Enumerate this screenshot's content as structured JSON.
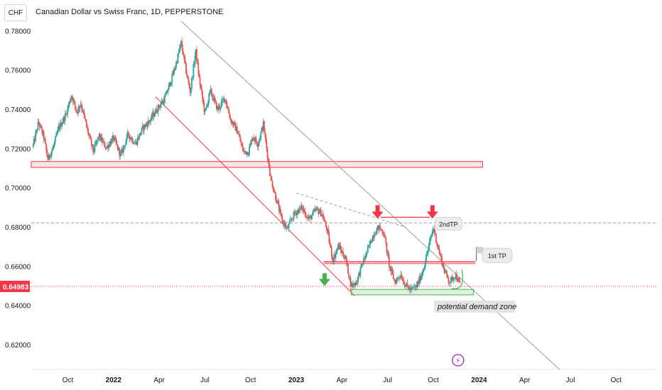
{
  "header": {
    "currency": "CHF",
    "title": "Canadian Dollar vs Swiss Franc, 1D, PEPPERSTONE"
  },
  "colors": {
    "up": "#26a69a",
    "down": "#ef5350",
    "resistance": "#f23645",
    "support": "#4caf50",
    "trendline": "#9e9e9e",
    "price_tag": "#f23645"
  },
  "chart_data": {
    "type": "candlestick",
    "title": "Canadian Dollar vs Swiss Franc, 1D, PEPPERSTONE",
    "ylim": [
      0.6075,
      0.785
    ],
    "y_ticks": [
      0.78,
      0.76,
      0.74,
      0.72,
      0.7,
      0.68,
      0.66,
      0.64,
      0.62
    ],
    "y_tick_labels": [
      "0.78000",
      "0.76000",
      "0.74000",
      "0.72000",
      "0.70000",
      "0.68000",
      "0.66000",
      "0.64000",
      "0.62000"
    ],
    "x_ticks": [
      "Oct",
      "2022",
      "Apr",
      "Jul",
      "Oct",
      "2023",
      "Apr",
      "Jul",
      "Oct",
      "2024",
      "Apr",
      "Jul",
      "Oct"
    ],
    "x_tick_positions": [
      2021.75,
      2022.0,
      2022.25,
      2022.5,
      2022.75,
      2023.0,
      2023.25,
      2023.5,
      2023.75,
      2024.0,
      2024.25,
      2024.5,
      2024.75
    ],
    "xlim": [
      2021.55,
      2024.97
    ],
    "current_price": 0.64983,
    "current_price_label": "0.64983",
    "price_path": [
      [
        2021.56,
        0.7215
      ],
      [
        2021.59,
        0.7335
      ],
      [
        2021.62,
        0.7255
      ],
      [
        2021.64,
        0.7145
      ],
      [
        2021.67,
        0.7205
      ],
      [
        2021.7,
        0.7305
      ],
      [
        2021.74,
        0.7375
      ],
      [
        2021.77,
        0.7475
      ],
      [
        2021.8,
        0.7385
      ],
      [
        2021.82,
        0.7435
      ],
      [
        2021.86,
        0.7285
      ],
      [
        2021.89,
        0.7185
      ],
      [
        2021.92,
        0.7265
      ],
      [
        2021.96,
        0.7205
      ],
      [
        2022.0,
        0.7255
      ],
      [
        2022.04,
        0.7165
      ],
      [
        2022.08,
        0.7275
      ],
      [
        2022.12,
        0.7225
      ],
      [
        2022.16,
        0.7305
      ],
      [
        2022.2,
        0.7345
      ],
      [
        2022.24,
        0.7405
      ],
      [
        2022.28,
        0.7455
      ],
      [
        2022.31,
        0.7535
      ],
      [
        2022.34,
        0.7625
      ],
      [
        2022.37,
        0.774
      ],
      [
        2022.4,
        0.758
      ],
      [
        2022.42,
        0.749
      ],
      [
        2022.45,
        0.77
      ],
      [
        2022.47,
        0.755
      ],
      [
        2022.5,
        0.738
      ],
      [
        2022.53,
        0.7495
      ],
      [
        2022.57,
        0.74
      ],
      [
        2022.61,
        0.746
      ],
      [
        2022.64,
        0.735
      ],
      [
        2022.68,
        0.7285
      ],
      [
        2022.71,
        0.7185
      ],
      [
        2022.74,
        0.7185
      ],
      [
        2022.76,
        0.7265
      ],
      [
        2022.79,
        0.7225
      ],
      [
        2022.82,
        0.7325
      ],
      [
        2022.86,
        0.705
      ],
      [
        2022.89,
        0.6945
      ],
      [
        2022.92,
        0.684
      ],
      [
        2022.95,
        0.679
      ],
      [
        2022.99,
        0.687
      ],
      [
        2023.03,
        0.69
      ],
      [
        2023.07,
        0.684
      ],
      [
        2023.11,
        0.689
      ],
      [
        2023.14,
        0.687
      ],
      [
        2023.17,
        0.678
      ],
      [
        2023.2,
        0.663
      ],
      [
        2023.23,
        0.6705
      ],
      [
        2023.27,
        0.664
      ],
      [
        2023.3,
        0.65
      ],
      [
        2023.33,
        0.652
      ],
      [
        2023.36,
        0.661
      ],
      [
        2023.39,
        0.668
      ],
      [
        2023.42,
        0.676
      ],
      [
        2023.45,
        0.68
      ],
      [
        2023.48,
        0.677
      ],
      [
        2023.51,
        0.66
      ],
      [
        2023.54,
        0.652
      ],
      [
        2023.57,
        0.656
      ],
      [
        2023.6,
        0.65
      ],
      [
        2023.63,
        0.648
      ],
      [
        2023.66,
        0.65
      ],
      [
        2023.69,
        0.657
      ],
      [
        2023.72,
        0.668
      ],
      [
        2023.75,
        0.68
      ],
      [
        2023.78,
        0.668
      ],
      [
        2023.81,
        0.658
      ],
      [
        2023.84,
        0.652
      ],
      [
        2023.87,
        0.656
      ],
      [
        2023.9,
        0.6498
      ]
    ],
    "annotations": {
      "resistance_zone": {
        "y1": 0.7105,
        "y2": 0.7135,
        "x1": 2021.55,
        "x2": 2024.02
      },
      "demand_zone": {
        "y1": 0.6455,
        "y2": 0.6483,
        "x1": 2023.3,
        "x2": 2023.97,
        "label": "potential demand zone"
      },
      "tp1_line": {
        "y": 0.662,
        "x1": 2023.15,
        "x2": 2023.98,
        "label": "1st TP"
      },
      "tp2_level": {
        "y": 0.6822,
        "label": "2ndTP"
      },
      "falling_channel": {
        "from": [
          2022.23,
          0.7465
        ],
        "to": [
          2023.32,
          0.645
        ]
      },
      "long_trendline": {
        "from": [
          2022.37,
          0.785
        ],
        "to": [
          2024.44,
          0.6075
        ]
      },
      "dashed_trend": {
        "from": [
          2023.0,
          0.6975
        ],
        "to": [
          2023.6,
          0.68
        ]
      }
    }
  },
  "markers": {
    "period_label": "⚡"
  }
}
